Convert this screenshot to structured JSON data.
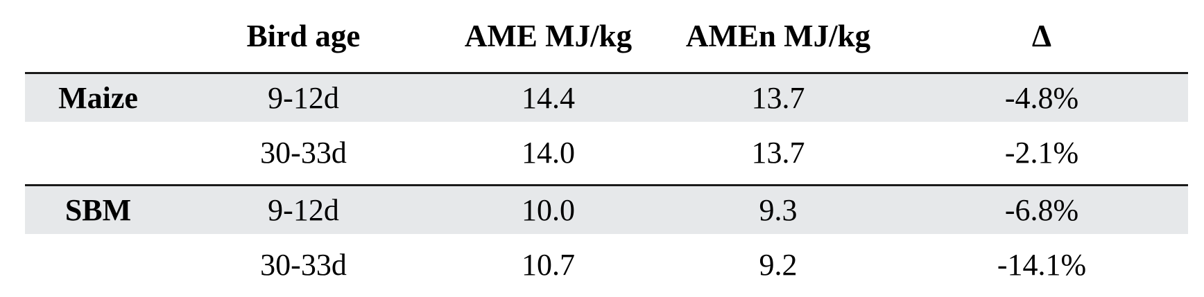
{
  "table": {
    "columns": [
      "",
      "Bird age",
      "AME MJ/kg",
      "AMEn MJ/kg",
      "Δ"
    ],
    "rows": [
      {
        "group": "Maize",
        "bird_age": "9-12d",
        "ame": "14.4",
        "amen": "13.7",
        "delta": "-4.8%"
      },
      {
        "group": "",
        "bird_age": "30-33d",
        "ame": "14.0",
        "amen": "13.7",
        "delta": "-2.1%"
      },
      {
        "group": "SBM",
        "bird_age": "9-12d",
        "ame": "10.0",
        "amen": "9.3",
        "delta": "-6.8%"
      },
      {
        "group": "",
        "bird_age": "30-33d",
        "ame": "10.7",
        "amen": "9.2",
        "delta": "-14.1%"
      }
    ],
    "colors": {
      "shaded_row_bg": "#e6e8ea",
      "rule_line": "#1a1a1a",
      "text": "#000000",
      "background": "#ffffff"
    }
  },
  "chart_data": {
    "type": "table",
    "title": "",
    "columns": [
      "",
      "Bird age",
      "AME MJ/kg",
      "AMEn MJ/kg",
      "Δ"
    ],
    "rows": [
      [
        "Maize",
        "9-12d",
        14.4,
        13.7,
        "-4.8%"
      ],
      [
        "",
        "30-33d",
        14.0,
        13.7,
        "-2.1%"
      ],
      [
        "SBM",
        "9-12d",
        10.0,
        9.3,
        "-6.8%"
      ],
      [
        "",
        "30-33d",
        10.7,
        9.2,
        "-14.1%"
      ]
    ]
  }
}
